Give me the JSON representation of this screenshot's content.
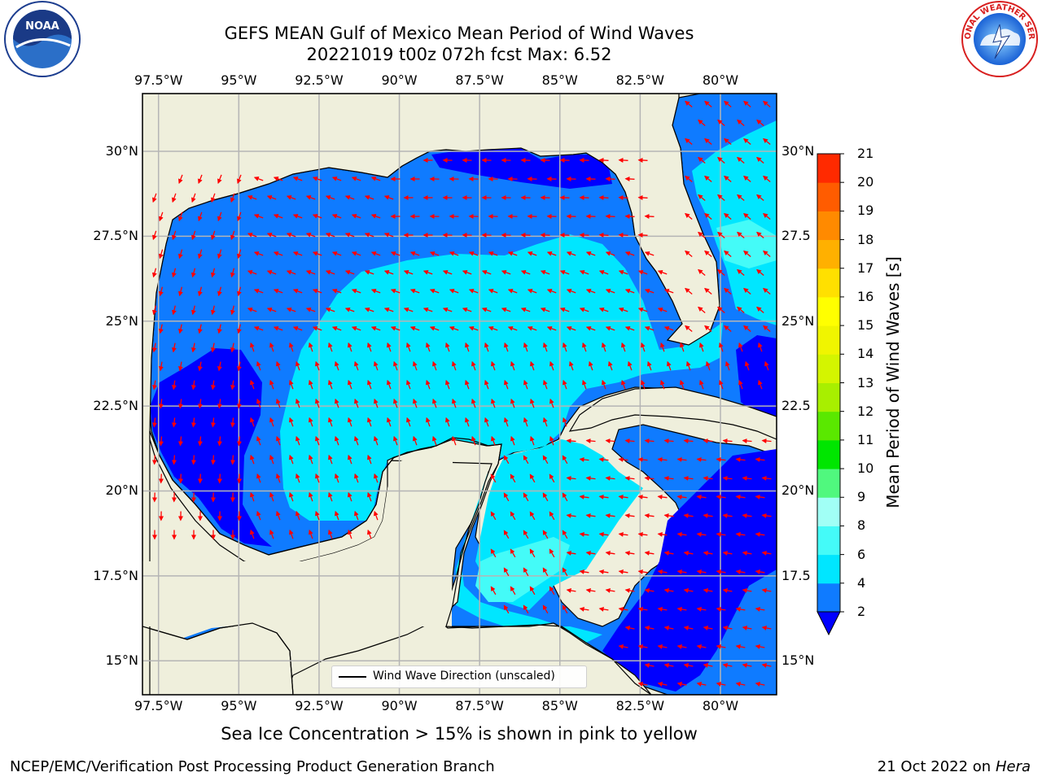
{
  "title_line1": "GEFS MEAN Gulf of Mexico Mean Period of Wind Waves",
  "title_line2": "20221019 t00z 072h fcst   Max: 6.52",
  "colorbar": {
    "title": "Mean Period of Wind Waves [s]",
    "ticks": [
      "2",
      "4",
      "6",
      "8",
      "9",
      "10",
      "11",
      "12",
      "13",
      "14",
      "15",
      "16",
      "17",
      "18",
      "19",
      "20",
      "21"
    ],
    "colors": [
      "#0f7bff",
      "#00e6ff",
      "#44fbf8",
      "#a1fff6",
      "#50f87e",
      "#00e600",
      "#5ae800",
      "#a8ef00",
      "#d4f500",
      "#f0f500",
      "#ffff00",
      "#ffe000",
      "#ffb000",
      "#ff8a00",
      "#ff5c00",
      "#ff2a00"
    ],
    "under_color": "#0000ff"
  },
  "map": {
    "lon_ticks": [
      "97.5°W",
      "95°W",
      "92.5°W",
      "90°W",
      "87.5°W",
      "85°W",
      "82.5°W",
      "80°W"
    ],
    "lat_ticks_left": [
      "30°N",
      "27.5°N",
      "25°N",
      "22.5°N",
      "20°N",
      "17.5°N",
      "15°N"
    ],
    "lat_ticks_right": [
      "30°N",
      "27.5",
      "25°N",
      "22.5",
      "20°N",
      "17.5",
      "15°N"
    ],
    "lon_range": [
      -98,
      -78.25
    ],
    "lat_range": [
      14.0,
      31.7
    ],
    "land_color": "#efefdc",
    "arrow_color": "#ff0000"
  },
  "legend": {
    "label": "Wind Wave Direction (unscaled)"
  },
  "ice_note": "Sea Ice Concentration > 15% is shown in pink to yellow",
  "footer": {
    "left": "NCEP/EMC/Verification Post Processing Product Generation Branch",
    "right_date": "21 Oct 2022 on ",
    "right_host": "Hera"
  },
  "logos": {
    "noaa": "NOAA",
    "nws": "NATIONAL WEATHER SERVICE"
  }
}
